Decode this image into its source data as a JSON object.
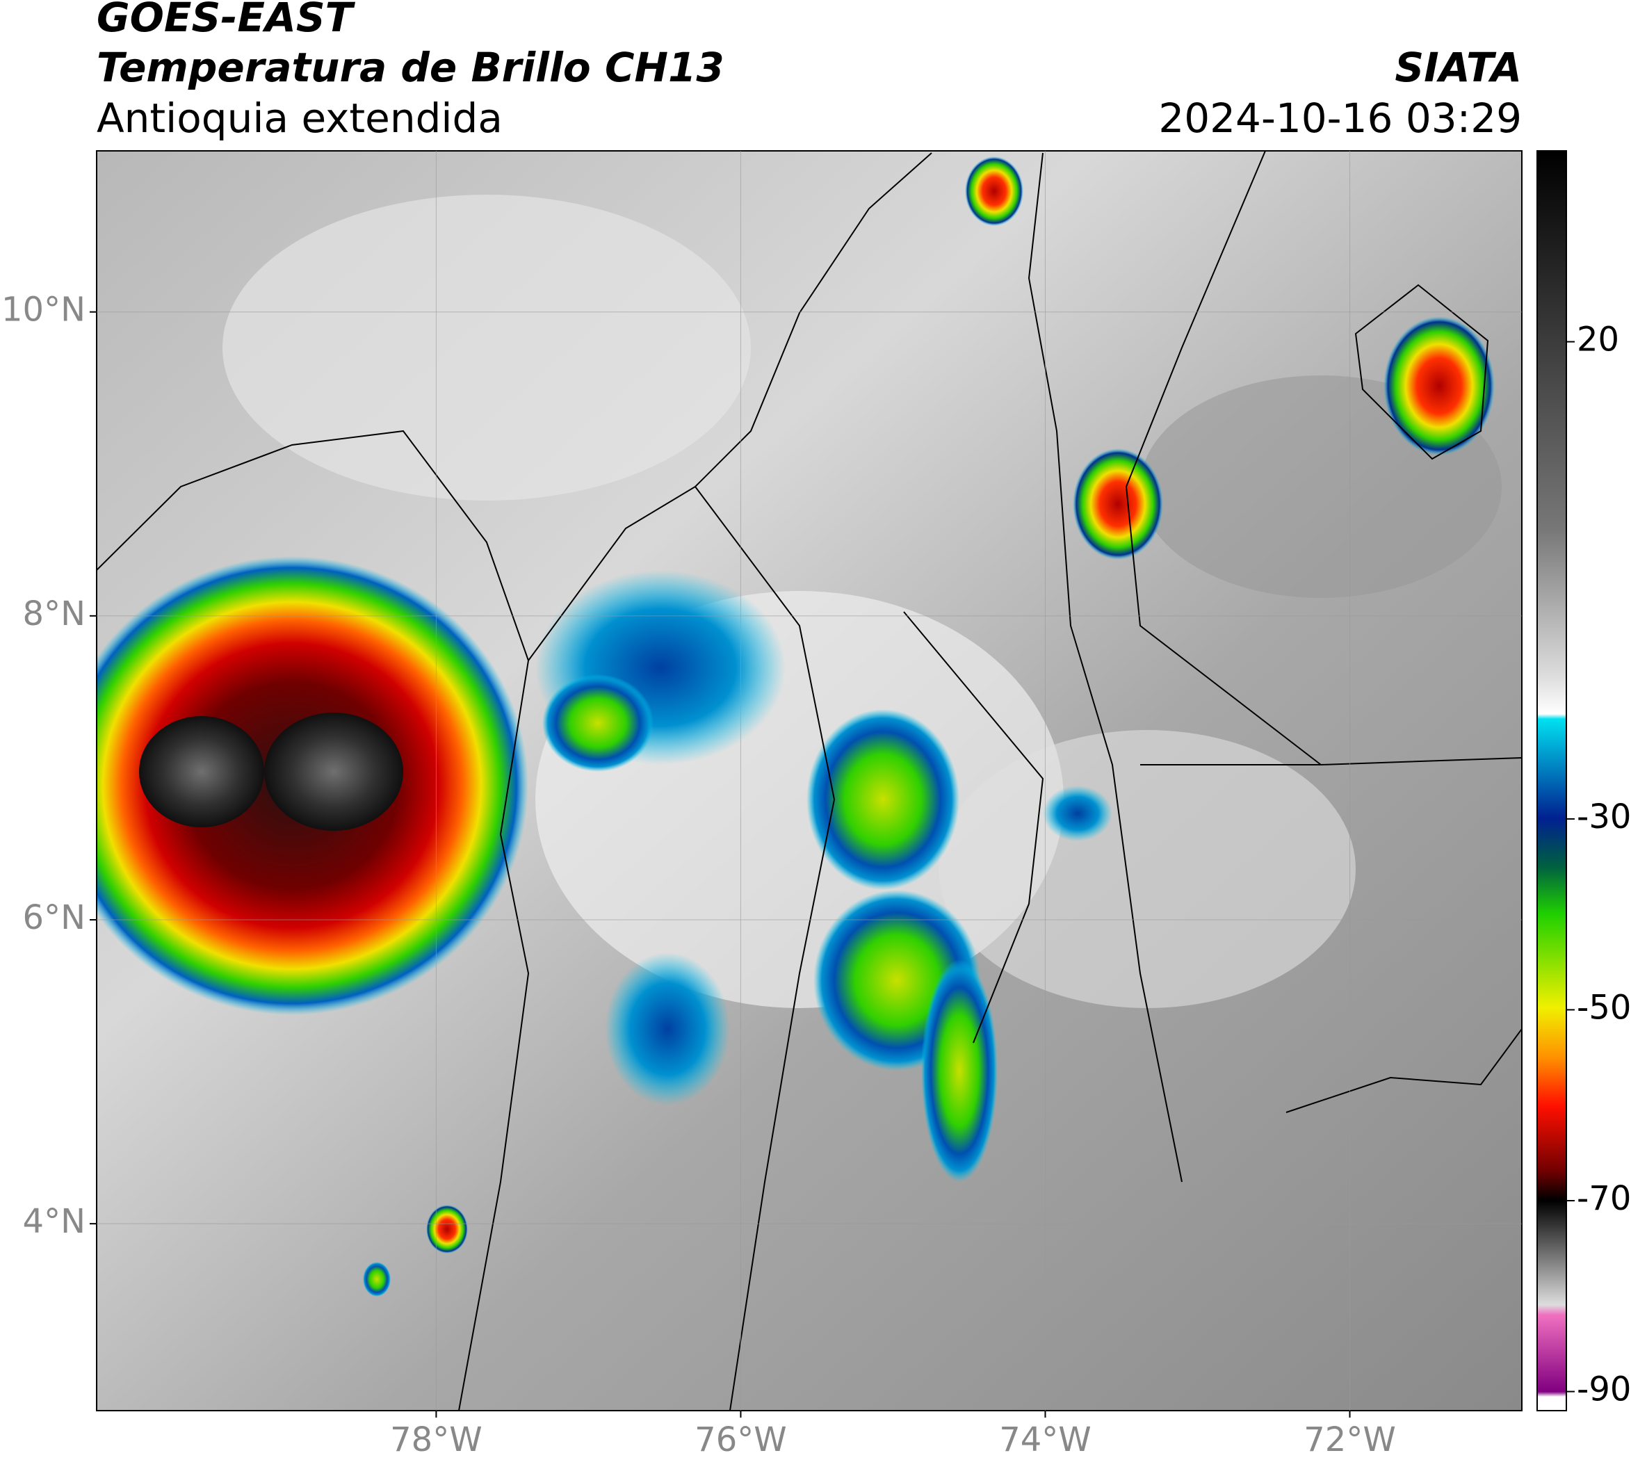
{
  "header": {
    "satellite": "GOES-EAST",
    "product": "Temperatura de Brillo CH13",
    "region": "Antioquia extendida",
    "organization": "SIATA",
    "datetime": "2024-10-16 03:29"
  },
  "map": {
    "lonlim": [
      -80.23,
      -70.87
    ],
    "latlim": [
      2.77,
      11.06
    ],
    "grid": true,
    "lon_ticks": [
      {
        "value": -78,
        "label": "78°W"
      },
      {
        "value": -76,
        "label": "76°W"
      },
      {
        "value": -74,
        "label": "74°W"
      },
      {
        "value": -72,
        "label": "72°W"
      }
    ],
    "lat_ticks": [
      {
        "value": 4,
        "label": "4°N"
      },
      {
        "value": 6,
        "label": "6°N"
      },
      {
        "value": 8,
        "label": "8°N"
      },
      {
        "value": 10,
        "label": "10°N"
      }
    ]
  },
  "colorbar": {
    "lim": [
      -92,
      40
    ],
    "ticks": [
      20,
      -30,
      -50,
      -70,
      -90
    ]
  }
}
